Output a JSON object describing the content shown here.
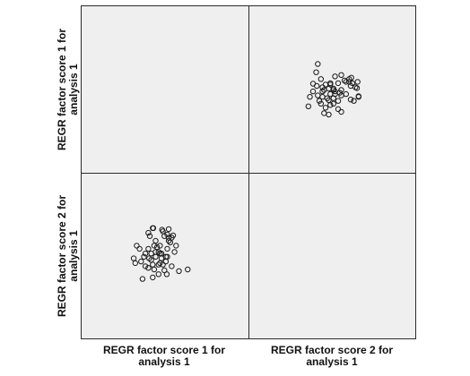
{
  "chart_data": {
    "type": "scatter",
    "subtype": "scatterplot-matrix",
    "variables": [
      {
        "line1": "REGR factor score   1 for",
        "line2": "analysis 1"
      },
      {
        "line1": "REGR factor score   2 for",
        "line2": "analysis 1"
      }
    ],
    "panel_background": "#efefef",
    "border_color": "#2b2b2b",
    "marker": "open-circle",
    "marker_color": "#1a1a1a",
    "diagonal_empty": true,
    "axis_ticks_shown": false,
    "grid": false,
    "group_a": [
      [
        0.02,
        0.8
      ],
      [
        0.25,
        0.82
      ],
      [
        -0.28,
        0.85
      ],
      [
        0.1,
        0.6
      ],
      [
        0.4,
        0.62
      ],
      [
        -0.05,
        0.3
      ],
      [
        0.2,
        0.2
      ],
      [
        -0.35,
        0.05
      ],
      [
        -0.2,
        -0.05
      ],
      [
        0.05,
        -0.3
      ],
      [
        0.35,
        -0.35
      ],
      [
        0.6,
        -0.5
      ],
      [
        -0.1,
        0.1
      ],
      [
        0.15,
        -0.05
      ],
      [
        -0.42,
        -0.1
      ],
      [
        0.3,
        0.4
      ],
      [
        0.0,
        0.05
      ],
      [
        -0.25,
        -0.45
      ],
      [
        0.1,
        -0.48
      ],
      [
        -0.15,
        0.25
      ],
      [
        0.45,
        0.1
      ],
      [
        0.25,
        0.55
      ],
      [
        -0.05,
        -0.25
      ],
      [
        0.5,
        0.3
      ],
      [
        0.2,
        0.65
      ],
      [
        -0.3,
        -0.3
      ],
      [
        0.18,
        -0.6
      ],
      [
        -0.45,
        -0.4
      ]
    ],
    "group_b": [
      [
        -0.1,
        -0.3
      ],
      [
        0.0,
        -0.1
      ],
      [
        0.9,
        -0.45
      ],
      [
        -0.65,
        -0.75
      ],
      [
        -0.55,
        0.05
      ],
      [
        -0.2,
        0.45
      ],
      [
        -0.25,
        0.3
      ],
      [
        -0.45,
        0.2
      ],
      [
        0.05,
        0.75
      ],
      [
        -0.3,
        0.85
      ],
      [
        -0.85,
        0.3
      ],
      [
        -0.95,
        -0.1
      ],
      [
        -0.6,
        -0.05
      ],
      [
        -0.75,
        0.2
      ],
      [
        -0.05,
        0.05
      ],
      [
        -0.35,
        -0.15
      ],
      [
        0.25,
        0.45
      ],
      [
        -0.9,
        -0.25
      ],
      [
        -0.55,
        -0.35
      ],
      [
        -0.1,
        -0.6
      ],
      [
        -0.3,
        -0.7
      ],
      [
        0.15,
        -0.2
      ],
      [
        -0.7,
        -0.2
      ],
      [
        0.35,
        0.55
      ],
      [
        -0.4,
        0.6
      ],
      [
        0.2,
        -0.05
      ],
      [
        -0.2,
        0.1
      ],
      [
        -0.45,
        0.7
      ]
    ],
    "domain": {
      "v1": [
        -2.0,
        2.0
      ],
      "v2": [
        -2.0,
        2.0
      ]
    }
  }
}
